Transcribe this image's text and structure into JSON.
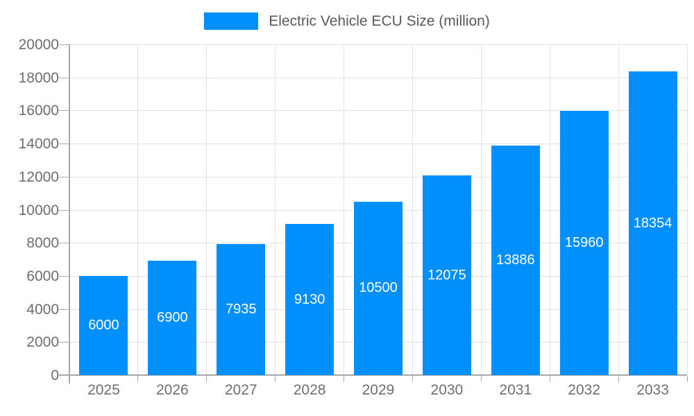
{
  "legend": {
    "label": "Electric Vehicle ECU Size (million)"
  },
  "chart_data": {
    "type": "bar",
    "title": "Electric Vehicle ECU Size (million)",
    "categories": [
      "2025",
      "2026",
      "2027",
      "2028",
      "2029",
      "2030",
      "2031",
      "2032",
      "2033"
    ],
    "values": [
      6000,
      6900,
      7935,
      9130,
      10500,
      12075,
      13886,
      15960,
      18354
    ],
    "series_name": "Electric Vehicle ECU Size (million)",
    "xlabel": "",
    "ylabel": "",
    "ylim": [
      0,
      20000
    ],
    "ytick_step": 2000,
    "ytick_labels": [
      "0",
      "2000",
      "4000",
      "6000",
      "8000",
      "10000",
      "12000",
      "14000",
      "16000",
      "18000",
      "20000"
    ],
    "grid": "horizontal and vertical light-gray gridlines",
    "legend_position": "top-center",
    "data_labels": "white values centered inside bars",
    "colors": {
      "bar": "#008FFB",
      "grid": "#e2e2e2",
      "axis": "#a8a8a8",
      "tick": "#a8a8a8",
      "tick_label": "#6e6e6e",
      "legend_text": "#595959",
      "data_label": "#ffffff",
      "background": "#ffffff"
    }
  }
}
